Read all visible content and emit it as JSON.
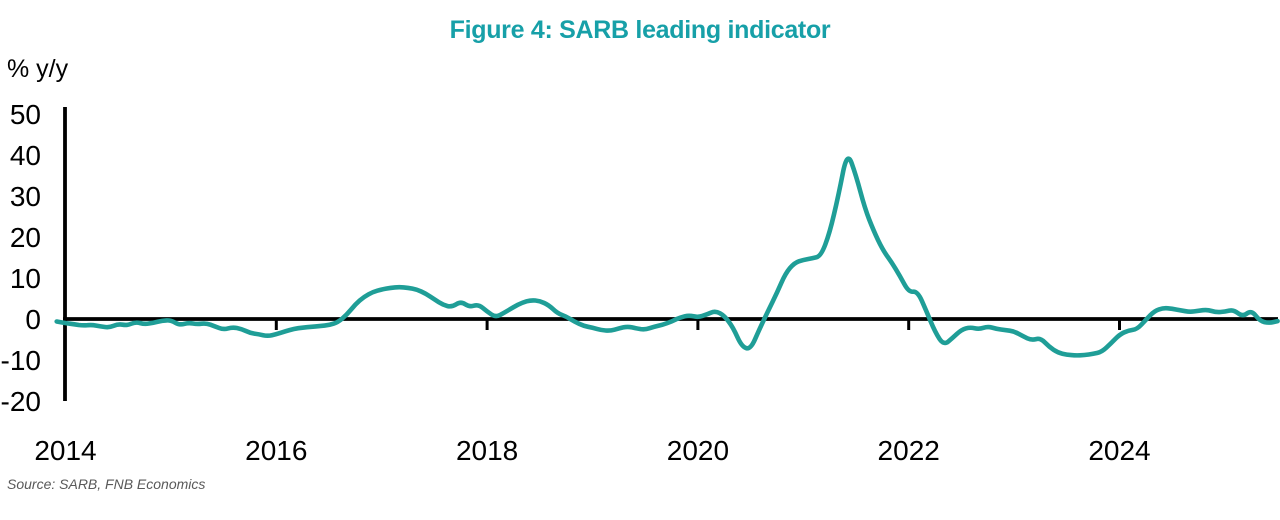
{
  "title": "Figure 4: SARB leading indicator",
  "source_note": "Source: SARB, FNB Economics",
  "colors": {
    "title": "#17A0A8",
    "line": "#1F9E97",
    "axis": "#000000",
    "tick_label": "#000000",
    "source_text": "#595959"
  },
  "chart_data": {
    "type": "line",
    "title": "Figure 4: SARB leading indicator",
    "ylabel": "% y/y",
    "xlabel": "",
    "ylim": [
      -20,
      50
    ],
    "yticks": [
      50,
      40,
      30,
      20,
      10,
      0,
      -10,
      -20
    ],
    "xticks": [
      2014,
      2016,
      2018,
      2020,
      2022,
      2024
    ],
    "grid": false,
    "legend": "none",
    "zero_line": true,
    "frequency": "monthly",
    "x_start": "2013-12",
    "x_end": "2025-07",
    "series": [
      {
        "name": "SARB leading indicator, % y/y",
        "values": [
          -0.6,
          -1.0,
          -1.3,
          -1.6,
          -1.4,
          -1.8,
          -2.1,
          -1.2,
          -1.6,
          -0.7,
          -1.3,
          -0.9,
          -0.4,
          -0.3,
          -1.5,
          -0.9,
          -1.3,
          -1.0,
          -1.8,
          -2.6,
          -2.0,
          -2.4,
          -3.4,
          -3.7,
          -4.2,
          -3.7,
          -3.0,
          -2.4,
          -2.1,
          -1.9,
          -1.7,
          -1.5,
          -0.8,
          1.0,
          3.6,
          5.4,
          6.6,
          7.2,
          7.6,
          7.8,
          7.6,
          7.2,
          6.2,
          4.8,
          3.4,
          2.9,
          4.3,
          2.9,
          3.6,
          1.8,
          0.4,
          1.6,
          2.9,
          4.0,
          4.6,
          4.4,
          3.4,
          1.4,
          0.6,
          -0.7,
          -1.7,
          -2.1,
          -2.7,
          -2.9,
          -2.3,
          -1.8,
          -2.3,
          -2.6,
          -1.9,
          -1.4,
          -0.6,
          0.4,
          0.9,
          0.4,
          1.1,
          2.0,
          0.8,
          -2.0,
          -6.8,
          -7.4,
          -2.5,
          2.0,
          6.4,
          11.2,
          13.7,
          14.4,
          14.8,
          15.3,
          21.0,
          30.0,
          41.0,
          35.0,
          27.0,
          21.5,
          17.0,
          14.0,
          10.5,
          6.5,
          6.8,
          2.0,
          -3.2,
          -6.4,
          -4.6,
          -2.6,
          -2.0,
          -2.5,
          -1.8,
          -2.4,
          -2.7,
          -3.0,
          -4.2,
          -5.2,
          -4.6,
          -6.8,
          -8.2,
          -8.7,
          -8.9,
          -8.8,
          -8.5,
          -8.0,
          -6.0,
          -3.8,
          -2.8,
          -2.5,
          -0.2,
          2.0,
          2.7,
          2.5,
          2.1,
          1.7,
          2.0,
          2.3,
          1.6,
          1.8,
          2.3,
          0.5,
          2.2,
          -0.5,
          -1.0,
          -0.5
        ]
      }
    ]
  }
}
